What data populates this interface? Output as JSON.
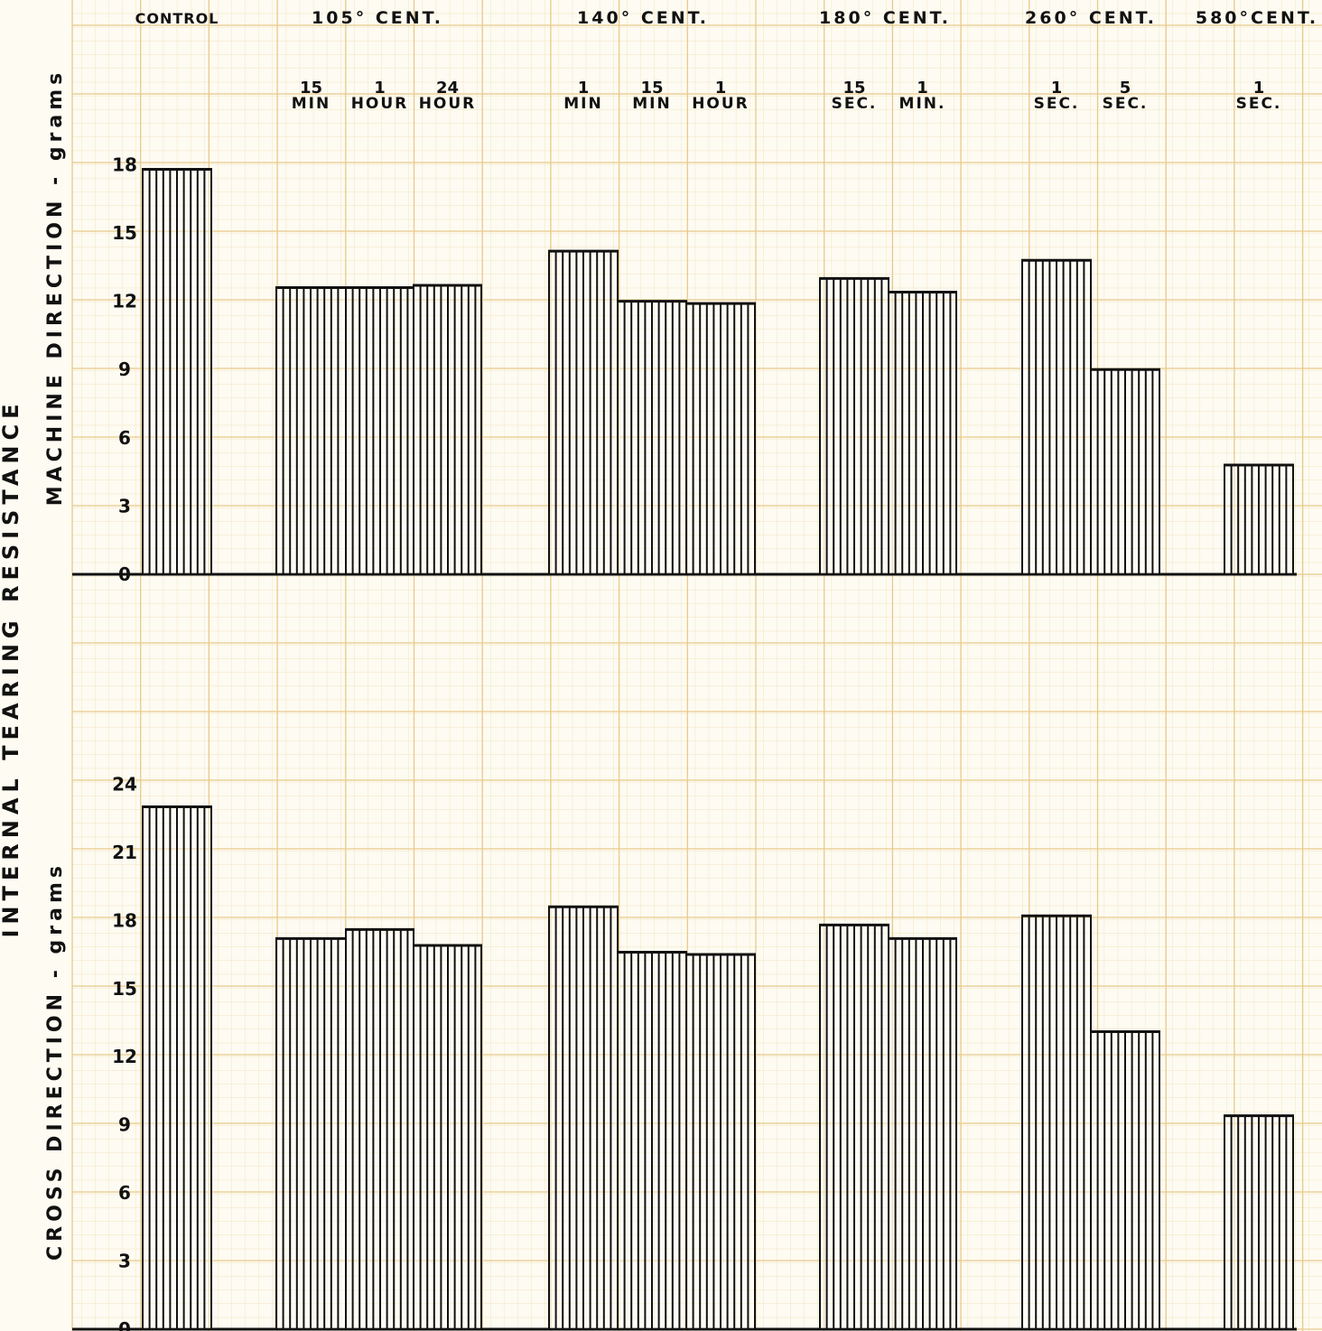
{
  "chart_data": {
    "type": "bar",
    "temperature_groups": [
      {
        "label": "CONTROL",
        "bars": [
          0
        ]
      },
      {
        "label": "105° CENT.",
        "bars": [
          1,
          2,
          3
        ]
      },
      {
        "label": "140° CENT.",
        "bars": [
          4,
          5,
          6
        ]
      },
      {
        "label": "180° CENT.",
        "bars": [
          7,
          8
        ]
      },
      {
        "label": "260° CENT.",
        "bars": [
          9,
          10
        ]
      },
      {
        "label": "580°CENT.",
        "bars": [
          11
        ]
      }
    ],
    "categories": [
      {
        "top": "",
        "bottom": ""
      },
      {
        "top": "15",
        "bottom": "MIN"
      },
      {
        "top": "1",
        "bottom": "HOUR"
      },
      {
        "top": "24",
        "bottom": "HOUR"
      },
      {
        "top": "1",
        "bottom": "MIN"
      },
      {
        "top": "15",
        "bottom": "MIN"
      },
      {
        "top": "1",
        "bottom": "HOUR"
      },
      {
        "top": "15",
        "bottom": "SEC."
      },
      {
        "top": "1",
        "bottom": "MIN."
      },
      {
        "top": "1",
        "bottom": "SEC."
      },
      {
        "top": "5",
        "bottom": "SEC."
      },
      {
        "top": "1",
        "bottom": "SEC."
      }
    ],
    "series": [
      {
        "values": [
          17.8,
          12.6,
          12.6,
          12.7,
          14.2,
          12.0,
          11.9,
          13.0,
          12.4,
          13.8,
          9.0,
          4.8
        ],
        "ylim": [
          0,
          18
        ],
        "yticks": [
          "0",
          "3",
          "6",
          "9",
          "12",
          "15",
          "18"
        ]
      },
      {
        "values": [
          23.0,
          17.2,
          17.6,
          16.9,
          18.6,
          16.6,
          16.5,
          17.8,
          17.2,
          18.2,
          13.1,
          9.4
        ],
        "ylim": [
          0,
          24
        ],
        "yticks": [
          "0",
          "3",
          "6",
          "9",
          "12",
          "15",
          "18",
          "21",
          "24"
        ]
      }
    ],
    "ylabel_common": "INTERNAL    TEARING    RESISTANCE",
    "ylabel_top": "MACHINE   DIRECTION  -  grams",
    "ylabel_bottom": "CROSS   DIRECTION  -  grams",
    "grid": true
  }
}
